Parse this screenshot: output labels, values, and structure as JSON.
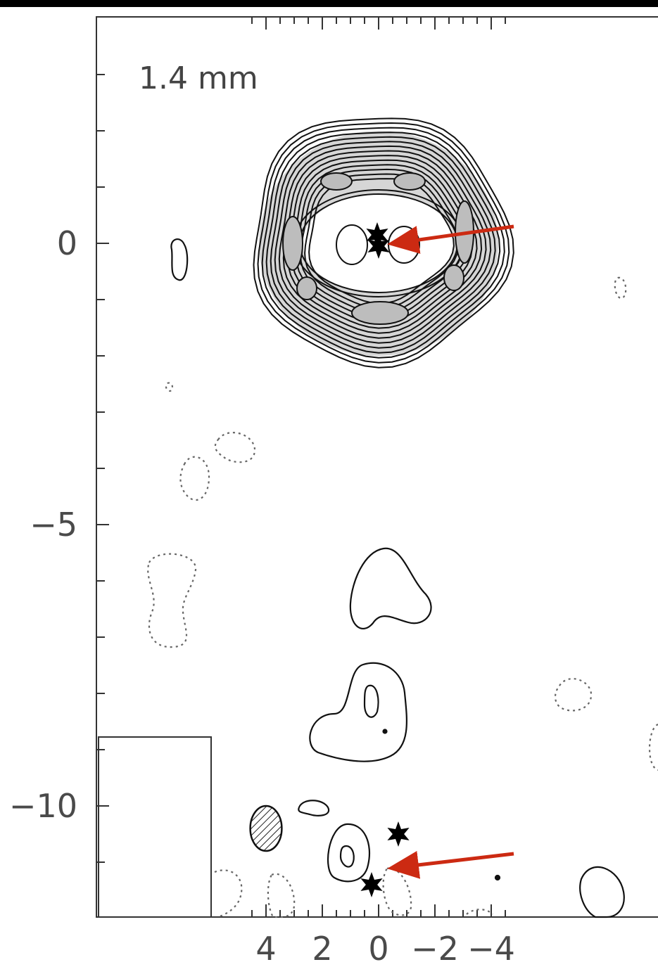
{
  "chart_data": {
    "type": "contour",
    "panel_label": "1.4 mm",
    "x_ticks": [
      {
        "value": 4,
        "label": "4"
      },
      {
        "value": 2,
        "label": "2"
      },
      {
        "value": 0,
        "label": "0"
      },
      {
        "value": -2,
        "label": "−2"
      },
      {
        "value": -4,
        "label": "−4"
      }
    ],
    "y_ticks": [
      {
        "value": 0,
        "label": "0"
      },
      {
        "value": -5,
        "label": "−5"
      },
      {
        "value": -10,
        "label": "−10"
      }
    ],
    "xlim": [
      5,
      -4.75
    ],
    "ylim": [
      -12,
      3.8
    ],
    "colors": {
      "contour": "#111111",
      "arrow": "#cc2a12",
      "frame": "#333333",
      "star": "#000000"
    },
    "stars": [
      {
        "x": 0.05,
        "y": 0.15
      },
      {
        "x": 0.0,
        "y": -0.05
      },
      {
        "x": -0.7,
        "y": -10.5
      },
      {
        "x": 0.25,
        "y": -11.4
      }
    ],
    "arrows": [
      {
        "from": [
          -4.8,
          0.3
        ],
        "to": [
          -0.55,
          0.0
        ]
      },
      {
        "from": [
          -4.8,
          -10.85
        ],
        "to": [
          -0.55,
          -11.1
        ]
      }
    ],
    "beam": {
      "x": 4.0,
      "y": -10.4,
      "major": 0.8,
      "minor": 0.56
    }
  }
}
